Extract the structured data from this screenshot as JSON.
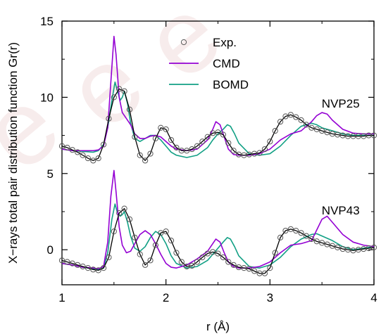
{
  "chart_data": {
    "type": "line",
    "xlabel": "r (Å)",
    "ylabel": "X−rays total pair distribution function Gr(r)",
    "xlim": [
      1,
      4
    ],
    "ylim": [
      -2.3,
      15
    ],
    "xticks": [
      1,
      2,
      3,
      4
    ],
    "yticks": [
      0,
      5,
      10,
      15
    ],
    "xtick_labels": [
      "1",
      "2",
      "3",
      "4"
    ],
    "ytick_labels": [
      "0",
      "5",
      "10",
      "15"
    ],
    "legend_position": "top-center",
    "legend": [
      {
        "name": "Exp.",
        "style": "open-circle-line"
      },
      {
        "name": "CMD",
        "style": "line"
      },
      {
        "name": "BOMD",
        "style": "line"
      }
    ],
    "annotations": [
      {
        "text": "NVP25",
        "x": 3.68,
        "y": 9.6
      },
      {
        "text": "NVP43",
        "x": 3.68,
        "y": 2.6
      }
    ],
    "colors": {
      "Exp.": "#000000",
      "CMD": "#9400d3",
      "BOMD": "#12a085"
    },
    "series": [
      {
        "name": "Exp.",
        "group": "NVP25",
        "x": [
          1.0,
          1.05,
          1.1,
          1.15,
          1.2,
          1.25,
          1.3,
          1.35,
          1.4,
          1.45,
          1.5,
          1.55,
          1.6,
          1.65,
          1.7,
          1.75,
          1.8,
          1.85,
          1.9,
          1.95,
          2.0,
          2.05,
          2.1,
          2.15,
          2.2,
          2.25,
          2.3,
          2.35,
          2.4,
          2.45,
          2.5,
          2.55,
          2.6,
          2.65,
          2.7,
          2.75,
          2.8,
          2.85,
          2.9,
          2.95,
          3.0,
          3.05,
          3.1,
          3.15,
          3.2,
          3.25,
          3.3,
          3.35,
          3.4,
          3.45,
          3.5,
          3.55,
          3.6,
          3.65,
          3.7,
          3.75,
          3.8,
          3.85,
          3.9,
          3.95,
          4.0
        ],
        "y": [
          6.8,
          6.7,
          6.55,
          6.4,
          6.2,
          6.0,
          5.85,
          6.0,
          6.9,
          8.6,
          10.0,
          10.55,
          10.4,
          9.2,
          7.4,
          6.2,
          5.85,
          6.3,
          7.3,
          8.0,
          7.9,
          7.2,
          6.7,
          6.5,
          6.5,
          6.6,
          6.8,
          7.1,
          7.4,
          7.65,
          7.7,
          7.55,
          7.0,
          6.5,
          6.25,
          6.2,
          6.25,
          6.3,
          6.35,
          6.6,
          7.1,
          7.8,
          8.4,
          8.75,
          8.85,
          8.7,
          8.5,
          8.2,
          8.0,
          7.9,
          7.8,
          7.7,
          7.6,
          7.55,
          7.5,
          7.45,
          7.45,
          7.45,
          7.45,
          7.5,
          7.5
        ]
      },
      {
        "name": "CMD",
        "group": "NVP25",
        "x": [
          1.0,
          1.1,
          1.2,
          1.3,
          1.35,
          1.4,
          1.44,
          1.47,
          1.5,
          1.52,
          1.55,
          1.58,
          1.62,
          1.66,
          1.7,
          1.75,
          1.8,
          1.85,
          1.9,
          1.95,
          2.0,
          2.05,
          2.1,
          2.2,
          2.3,
          2.4,
          2.45,
          2.48,
          2.52,
          2.56,
          2.6,
          2.65,
          2.7,
          2.8,
          2.9,
          3.0,
          3.1,
          3.2,
          3.3,
          3.4,
          3.45,
          3.5,
          3.55,
          3.6,
          3.7,
          3.8,
          3.9,
          4.0
        ],
        "y": [
          6.6,
          6.5,
          6.5,
          6.5,
          6.55,
          6.8,
          8.0,
          11.0,
          14.0,
          12.8,
          10.0,
          9.0,
          8.6,
          8.2,
          7.6,
          7.3,
          7.3,
          7.45,
          7.5,
          7.4,
          7.1,
          6.8,
          6.6,
          6.5,
          6.6,
          7.2,
          7.9,
          8.4,
          8.2,
          7.4,
          6.6,
          6.25,
          6.2,
          6.2,
          6.3,
          6.6,
          7.2,
          7.6,
          7.8,
          8.4,
          8.8,
          9.0,
          8.9,
          8.5,
          7.9,
          7.65,
          7.6,
          7.6
        ]
      },
      {
        "name": "BOMD",
        "group": "NVP25",
        "x": [
          1.0,
          1.1,
          1.2,
          1.3,
          1.35,
          1.4,
          1.44,
          1.48,
          1.51,
          1.53,
          1.56,
          1.58,
          1.6,
          1.63,
          1.66,
          1.7,
          1.75,
          1.8,
          1.85,
          1.9,
          1.95,
          2.0,
          2.05,
          2.1,
          2.2,
          2.3,
          2.4,
          2.45,
          2.5,
          2.55,
          2.59,
          2.62,
          2.66,
          2.7,
          2.8,
          2.9,
          3.0,
          3.1,
          3.2,
          3.3,
          3.4,
          3.45,
          3.5,
          3.6,
          3.7,
          3.8,
          3.9,
          4.0
        ],
        "y": [
          6.6,
          6.5,
          6.45,
          6.4,
          6.5,
          6.9,
          8.0,
          9.8,
          11.0,
          10.5,
          9.8,
          10.0,
          10.4,
          9.6,
          8.3,
          7.3,
          7.1,
          7.3,
          7.5,
          7.5,
          7.2,
          6.8,
          6.4,
          6.2,
          6.05,
          6.2,
          6.7,
          7.2,
          7.6,
          7.9,
          8.2,
          8.1,
          7.6,
          7.0,
          6.3,
          6.2,
          6.3,
          6.8,
          7.5,
          8.1,
          8.3,
          8.2,
          8.0,
          7.8,
          7.6,
          7.5,
          7.5,
          7.5
        ]
      },
      {
        "name": "Exp.",
        "group": "NVP43",
        "x": [
          1.0,
          1.05,
          1.1,
          1.15,
          1.2,
          1.25,
          1.3,
          1.35,
          1.4,
          1.45,
          1.5,
          1.55,
          1.6,
          1.65,
          1.7,
          1.75,
          1.8,
          1.85,
          1.9,
          1.95,
          2.0,
          2.05,
          2.1,
          2.15,
          2.2,
          2.25,
          2.3,
          2.35,
          2.4,
          2.45,
          2.5,
          2.55,
          2.6,
          2.65,
          2.7,
          2.75,
          2.8,
          2.85,
          2.9,
          2.95,
          3.0,
          3.05,
          3.1,
          3.15,
          3.2,
          3.25,
          3.3,
          3.35,
          3.4,
          3.45,
          3.5,
          3.55,
          3.6,
          3.65,
          3.7,
          3.75,
          3.8,
          3.85,
          3.9,
          3.95,
          4.0
        ],
        "y": [
          -0.7,
          -0.8,
          -0.9,
          -1.0,
          -1.1,
          -1.2,
          -1.3,
          -1.35,
          -1.2,
          -0.5,
          1.2,
          2.4,
          2.7,
          2.0,
          0.8,
          -0.3,
          -1.0,
          -0.7,
          0.3,
          1.1,
          1.2,
          0.6,
          -0.2,
          -0.8,
          -1.1,
          -1.05,
          -0.8,
          -0.5,
          -0.25,
          -0.15,
          -0.25,
          -0.5,
          -0.8,
          -1.0,
          -1.15,
          -1.2,
          -1.25,
          -1.4,
          -1.55,
          -1.55,
          -1.2,
          -0.2,
          0.8,
          1.25,
          1.35,
          1.25,
          1.1,
          0.9,
          0.7,
          0.55,
          0.45,
          0.35,
          0.25,
          0.15,
          0.05,
          0.0,
          -0.05,
          0.0,
          0.05,
          0.1,
          0.15
        ]
      },
      {
        "name": "CMD",
        "group": "NVP43",
        "x": [
          1.0,
          1.1,
          1.2,
          1.3,
          1.35,
          1.4,
          1.44,
          1.47,
          1.5,
          1.52,
          1.55,
          1.58,
          1.62,
          1.66,
          1.7,
          1.75,
          1.8,
          1.85,
          1.9,
          1.95,
          2.0,
          2.05,
          2.1,
          2.2,
          2.3,
          2.4,
          2.45,
          2.48,
          2.52,
          2.56,
          2.6,
          2.65,
          2.7,
          2.8,
          2.9,
          3.0,
          3.1,
          3.2,
          3.3,
          3.4,
          3.45,
          3.5,
          3.55,
          3.6,
          3.7,
          3.8,
          3.9,
          4.0
        ],
        "y": [
          -0.9,
          -1.0,
          -1.15,
          -1.2,
          -1.25,
          -1.1,
          0.5,
          3.5,
          5.2,
          3.8,
          1.5,
          0.3,
          -0.2,
          -0.1,
          0.4,
          1.0,
          1.25,
          1.0,
          0.4,
          -0.3,
          -0.9,
          -1.15,
          -1.2,
          -1.0,
          -0.6,
          -0.1,
          0.4,
          0.7,
          0.5,
          -0.2,
          -0.8,
          -1.1,
          -1.2,
          -1.2,
          -1.1,
          -0.8,
          -0.2,
          0.3,
          0.4,
          0.6,
          1.3,
          2.0,
          2.2,
          1.8,
          1.0,
          0.5,
          0.3,
          0.2
        ]
      },
      {
        "name": "BOMD",
        "group": "NVP43",
        "x": [
          1.0,
          1.1,
          1.2,
          1.3,
          1.35,
          1.4,
          1.44,
          1.48,
          1.51,
          1.53,
          1.56,
          1.58,
          1.6,
          1.63,
          1.66,
          1.7,
          1.75,
          1.8,
          1.85,
          1.9,
          1.95,
          2.0,
          2.05,
          2.1,
          2.2,
          2.3,
          2.4,
          2.45,
          2.5,
          2.55,
          2.59,
          2.62,
          2.66,
          2.7,
          2.8,
          2.9,
          3.0,
          3.1,
          3.2,
          3.3,
          3.4,
          3.45,
          3.5,
          3.6,
          3.7,
          3.8,
          3.9,
          4.0
        ],
        "y": [
          -0.9,
          -1.0,
          -1.15,
          -1.25,
          -1.3,
          -1.2,
          -0.2,
          2.0,
          3.0,
          2.5,
          2.2,
          2.3,
          2.5,
          1.8,
          0.9,
          0.1,
          -0.1,
          0.2,
          0.8,
          1.2,
          1.0,
          0.4,
          -0.4,
          -0.9,
          -1.2,
          -1.1,
          -0.7,
          -0.3,
          0.1,
          0.5,
          0.8,
          0.7,
          0.2,
          -0.4,
          -1.1,
          -1.2,
          -1.0,
          -0.5,
          0.2,
          0.7,
          1.0,
          1.05,
          0.9,
          0.6,
          0.2,
          0.0,
          0.1,
          0.2
        ]
      }
    ]
  }
}
